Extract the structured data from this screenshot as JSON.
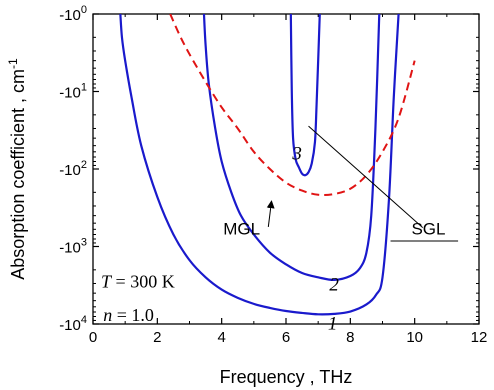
{
  "chart_data": {
    "type": "line",
    "xlabel": "Frequency , THz",
    "ylabel": "Absorption coefficient , cm",
    "ylabel_sup": "-1",
    "xlim": [
      0,
      12
    ],
    "ylim_magnitude": [
      1,
      10000
    ],
    "y_scale": "log",
    "y_sign": "negative",
    "grid": false,
    "x_ticks": [
      0,
      2,
      4,
      6,
      8,
      10,
      12
    ],
    "y_ticks": [
      {
        "base": "-10",
        "exp": "0",
        "value": 1
      },
      {
        "base": "-10",
        "exp": "1",
        "value": 10
      },
      {
        "base": "-10",
        "exp": "2",
        "value": 100
      },
      {
        "base": "-10",
        "exp": "3",
        "value": 1000
      },
      {
        "base": "-10",
        "exp": "4",
        "value": 10000
      }
    ],
    "series": [
      {
        "name": "1",
        "color": "#1a1acc",
        "dash": "solid",
        "x": [
          0.85,
          0.9,
          1.0,
          1.2,
          1.5,
          2.0,
          2.5,
          3.0,
          3.5,
          4.0,
          4.5,
          5.0,
          5.5,
          6.0,
          6.5,
          7.0,
          7.5,
          8.0,
          8.5,
          8.8,
          9.0,
          9.2,
          9.35,
          9.5
        ],
        "y": [
          1,
          2,
          4,
          12,
          50,
          230,
          700,
          1500,
          2500,
          3600,
          4600,
          5500,
          6200,
          6800,
          7200,
          7500,
          7400,
          6900,
          5600,
          4200,
          2500,
          250,
          12,
          1
        ]
      },
      {
        "name": "2",
        "color": "#1a1acc",
        "dash": "solid",
        "x": [
          3.45,
          3.5,
          3.6,
          3.8,
          4.0,
          4.3,
          4.6,
          5.0,
          5.5,
          6.0,
          6.5,
          7.0,
          7.5,
          8.0,
          8.3,
          8.5,
          8.65,
          8.78,
          8.9
        ],
        "y": [
          1,
          2.5,
          8,
          30,
          80,
          200,
          400,
          700,
          1200,
          1700,
          2200,
          2500,
          2700,
          2400,
          1900,
          1200,
          400,
          30,
          1
        ]
      },
      {
        "name": "3",
        "color": "#1a1acc",
        "dash": "solid",
        "x": [
          6.15,
          6.18,
          6.22,
          6.3,
          6.4,
          6.5,
          6.6,
          6.7,
          6.8,
          6.9,
          6.95,
          7.0,
          7.05
        ],
        "y": [
          1,
          10,
          40,
          75,
          95,
          115,
          120,
          110,
          85,
          45,
          15,
          4,
          1
        ]
      },
      {
        "name": "MGL",
        "color": "#e01414",
        "dash": "dashed",
        "x": [
          2.4,
          2.7,
          3.0,
          3.5,
          4.0,
          4.5,
          5.0,
          5.5,
          6.0,
          6.5,
          7.0,
          7.5,
          8.0,
          8.5,
          9.0,
          9.5,
          10.0
        ],
        "y": [
          1,
          1.9,
          3.3,
          7.5,
          16,
          30,
          60,
          100,
          150,
          190,
          215,
          210,
          180,
          120,
          60,
          22,
          4
        ]
      }
    ],
    "curve_labels": [
      {
        "text": "1",
        "x": 7.3,
        "y": 11800
      },
      {
        "text": "2",
        "x": 7.35,
        "y": 3700
      },
      {
        "text": "3",
        "x": 6.2,
        "y": 75
      }
    ],
    "annotations": [
      {
        "text": "MGL",
        "label_x": 4.05,
        "label_y": 700,
        "line": [
          [
            5.45,
            560
          ],
          [
            5.55,
            260
          ]
        ],
        "arrow": true
      },
      {
        "text": "SGL",
        "label_x": 9.9,
        "label_y": 700,
        "line": [
          [
            6.7,
            28
          ],
          [
            10.25,
            570
          ]
        ],
        "underline": [
          9.25,
          11.35,
          850
        ]
      }
    ],
    "params": [
      {
        "var": "T",
        "rest": " = 300 K",
        "x": 0.25,
        "y": 3400
      },
      {
        "var": "n",
        "rest": " = 1.0",
        "x": 0.32,
        "y": 9200
      }
    ]
  }
}
